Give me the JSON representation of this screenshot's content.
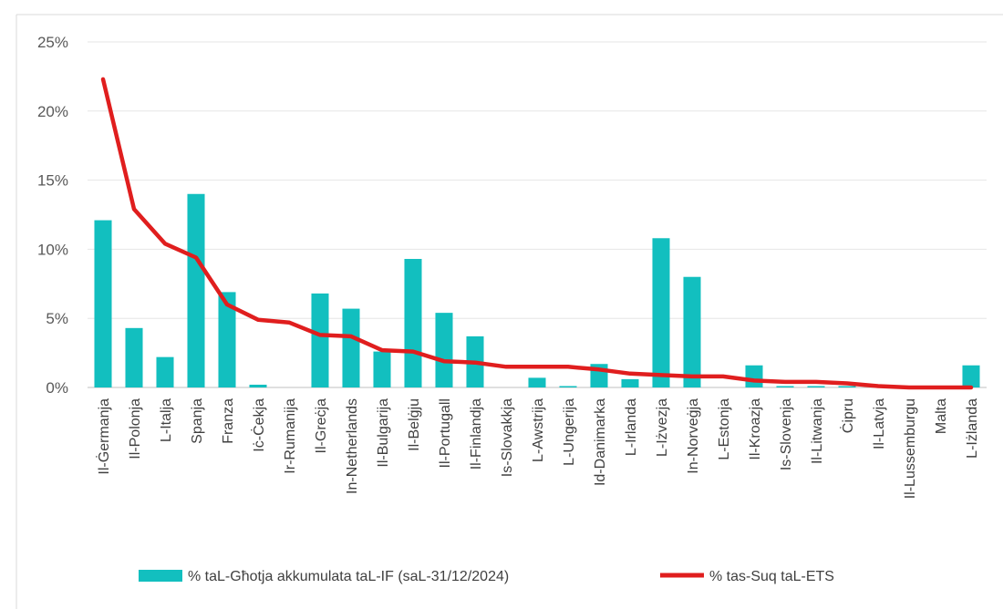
{
  "chart_data": {
    "type": "bar+line",
    "categories": [
      "Il-Ġermanja",
      "Il-Polonja",
      "L-Italja",
      "Spanja",
      "Franza",
      "Iċ-Ċekja",
      "Ir-Rumanija",
      "Il-Greċja",
      "In-Netherlands",
      "Il-Bulgarija",
      "Il-Belġju",
      "Il-Portugall",
      "Il-Finlandja",
      "Is-Slovakkja",
      "L-Awstrija",
      "L-Ungerija",
      "Id-Danimarka",
      "L-Irlanda",
      "L-Iżvezja",
      "In-Norveġja",
      "L-Estonja",
      "Il-Kroazja",
      "Is-Slovenja",
      "Il-Litwanja",
      "Ċipru",
      "Il-Latvja",
      "Il-Lussemburgu",
      "Malta",
      "L-Iżlanda"
    ],
    "series": [
      {
        "name": "% taL-Għotja akkumulata taL-IF (saL-31/12/2024)",
        "kind": "bar",
        "color": "#12BFBF",
        "values": [
          12.1,
          4.3,
          2.2,
          14.0,
          6.9,
          0.2,
          0.0,
          6.8,
          5.7,
          2.6,
          9.3,
          5.4,
          3.7,
          0.0,
          0.7,
          0.1,
          1.7,
          0.6,
          10.8,
          8.0,
          0.0,
          1.6,
          0.1,
          0.1,
          0.1,
          0.0,
          0.0,
          0.0,
          1.6
        ]
      },
      {
        "name": "% tas-Suq taL-ETS",
        "kind": "line",
        "color": "#E01E1E",
        "values": [
          22.3,
          12.9,
          10.4,
          9.4,
          6.0,
          4.9,
          4.7,
          3.8,
          3.7,
          2.7,
          2.6,
          1.9,
          1.8,
          1.5,
          1.5,
          1.5,
          1.3,
          1.0,
          0.9,
          0.8,
          0.8,
          0.5,
          0.4,
          0.4,
          0.3,
          0.1,
          0.0,
          0.0,
          0.0
        ]
      }
    ],
    "y_ticks": [
      "0%",
      "5%",
      "10%",
      "15%",
      "20%",
      "25%"
    ],
    "ylim": [
      0,
      25
    ],
    "grid": true,
    "legend_position": "bottom"
  }
}
